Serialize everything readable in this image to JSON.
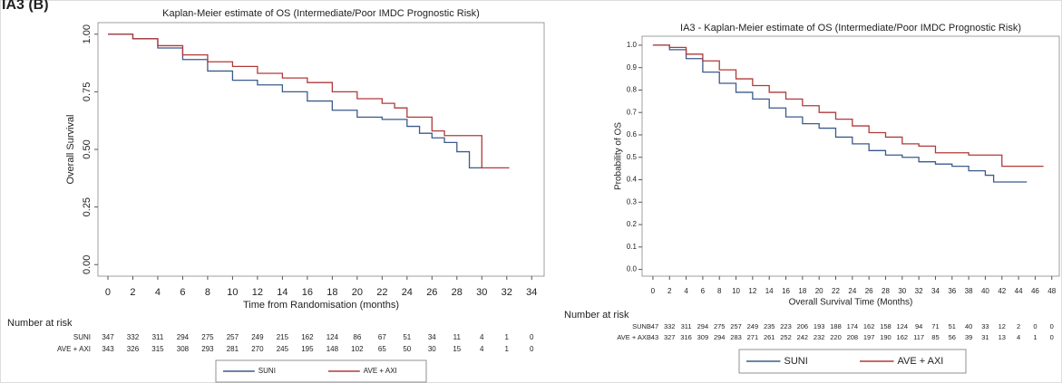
{
  "header": "IA3 (B)",
  "chart_data": [
    {
      "type": "line",
      "step": true,
      "legend": "bottom",
      "title": "Kaplan-Meier estimate of OS (Intermediate/Poor IMDC Prognostic Risk)",
      "xlabel": "Time from Randomisation (months)",
      "ylabel": "Overall Survival",
      "xlim": [
        -0.8,
        35
      ],
      "ylim": [
        -0.05,
        1.05
      ],
      "xticks": [
        0,
        2,
        4,
        6,
        8,
        10,
        12,
        14,
        16,
        18,
        20,
        22,
        24,
        26,
        28,
        30,
        32,
        34
      ],
      "yticks": [
        {
          "value": 0,
          "label": "0.00"
        },
        {
          "value": 0.25,
          "label": "0.25"
        },
        {
          "value": 0.5,
          "label": "0.50"
        },
        {
          "value": 0.75,
          "label": "0.75"
        },
        {
          "value": 1,
          "label": "1.00"
        }
      ],
      "series": [
        {
          "name": "SUNI",
          "color": "#3b5b8c",
          "x": [
            0,
            2,
            4,
            6,
            8,
            10,
            12,
            14,
            16,
            18,
            20,
            22,
            24,
            25,
            26,
            27,
            28,
            29,
            30
          ],
          "values": [
            1.0,
            0.98,
            0.94,
            0.89,
            0.84,
            0.8,
            0.78,
            0.75,
            0.71,
            0.67,
            0.64,
            0.63,
            0.6,
            0.57,
            0.55,
            0.53,
            0.49,
            0.42,
            0.42
          ]
        },
        {
          "name": "AVE + AXI",
          "color": "#b03a3a",
          "x": [
            0,
            2,
            4,
            6,
            8,
            10,
            12,
            14,
            16,
            18,
            20,
            22,
            23,
            24,
            26,
            27,
            30,
            32.2
          ],
          "values": [
            1.0,
            0.98,
            0.95,
            0.91,
            0.88,
            0.86,
            0.83,
            0.81,
            0.79,
            0.75,
            0.72,
            0.7,
            0.68,
            0.64,
            0.58,
            0.56,
            0.42,
            0.42
          ]
        }
      ],
      "risk_table": {
        "title": "Number at risk",
        "rows": [
          {
            "name": "SUNI",
            "values": [
              347,
              332,
              311,
              294,
              275,
              257,
              249,
              215,
              162,
              124,
              86,
              67,
              51,
              34,
              11,
              4,
              1,
              0
            ]
          },
          {
            "name": "AVE + AXI",
            "values": [
              343,
              326,
              315,
              308,
              293,
              281,
              270,
              245,
              195,
              148,
              102,
              65,
              50,
              30,
              15,
              4,
              1,
              0
            ]
          }
        ]
      }
    },
    {
      "type": "line",
      "step": true,
      "legend": "bottom",
      "title": "IA3 - Kaplan-Meier estimate of OS (Intermediate/Poor IMDC Prognostic Risk)",
      "xlabel": "Overall Survival Time (Months)",
      "ylabel": "Probability of OS",
      "xlim": [
        -1.3,
        48.9
      ],
      "ylim": [
        -0.03,
        1.04
      ],
      "xticks": [
        0,
        2,
        4,
        6,
        8,
        10,
        12,
        14,
        16,
        18,
        20,
        22,
        24,
        26,
        28,
        30,
        32,
        34,
        36,
        38,
        40,
        42,
        44,
        46,
        48
      ],
      "yticks": [
        {
          "value": 0,
          "label": "0.0"
        },
        0.1,
        0.2,
        0.3,
        0.4,
        0.5,
        0.6,
        0.7,
        0.8,
        0.9,
        {
          "value": 1,
          "label": "1.0"
        }
      ],
      "series": [
        {
          "name": "SUNI",
          "color": "#3b5b8c",
          "x": [
            0,
            2,
            4,
            6,
            8,
            10,
            12,
            14,
            16,
            18,
            20,
            22,
            24,
            26,
            28,
            30,
            32,
            34,
            36,
            38,
            40,
            41,
            45
          ],
          "values": [
            1.0,
            0.98,
            0.94,
            0.88,
            0.83,
            0.79,
            0.76,
            0.72,
            0.68,
            0.65,
            0.63,
            0.59,
            0.56,
            0.53,
            0.51,
            0.5,
            0.48,
            0.47,
            0.46,
            0.44,
            0.42,
            0.39,
            0.39
          ]
        },
        {
          "name": "AVE + AXI",
          "color": "#b03a3a",
          "x": [
            0,
            2,
            4,
            6,
            8,
            10,
            12,
            14,
            16,
            18,
            20,
            22,
            24,
            26,
            28,
            30,
            32,
            34,
            36,
            38,
            40,
            42,
            47
          ],
          "values": [
            1.0,
            0.99,
            0.96,
            0.93,
            0.89,
            0.85,
            0.82,
            0.79,
            0.76,
            0.73,
            0.7,
            0.67,
            0.64,
            0.61,
            0.59,
            0.56,
            0.55,
            0.52,
            0.52,
            0.51,
            0.51,
            0.46,
            0.46
          ]
        }
      ],
      "risk_table": {
        "title": "Number at risk",
        "rows": [
          {
            "name": "SUNI",
            "values": [
              347,
              332,
              311,
              294,
              275,
              257,
              249,
              235,
              223,
              206,
              193,
              188,
              174,
              162,
              158,
              124,
              94,
              71,
              51,
              40,
              33,
              12,
              2,
              0,
              0
            ]
          },
          {
            "name": "AVE + AXI",
            "values": [
              343,
              327,
              316,
              309,
              294,
              283,
              271,
              261,
              252,
              242,
              232,
              220,
              208,
              197,
              190,
              162,
              117,
              85,
              56,
              39,
              31,
              13,
              4,
              1,
              0
            ]
          }
        ]
      }
    }
  ]
}
